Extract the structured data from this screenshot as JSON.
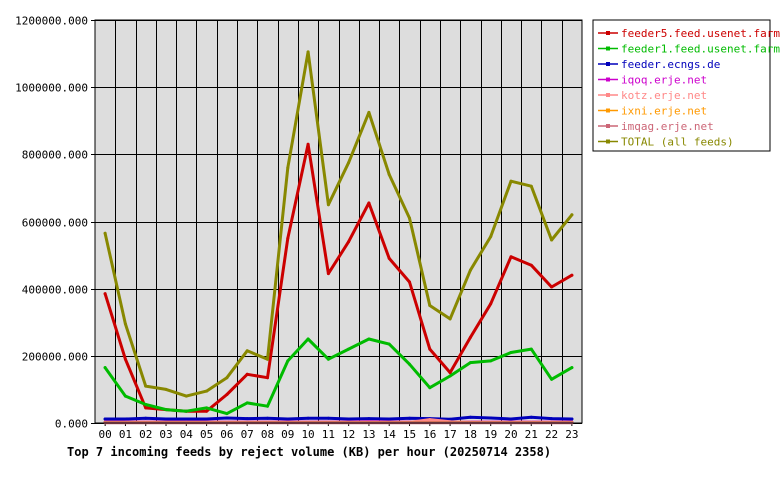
{
  "chart_data": {
    "type": "line",
    "title": "Top 7 incoming feeds by reject volume (KB) per hour (20250714 2358)",
    "xlabel": "",
    "ylabel": "",
    "categories": [
      "00",
      "01",
      "02",
      "03",
      "04",
      "05",
      "06",
      "07",
      "08",
      "09",
      "10",
      "11",
      "12",
      "13",
      "14",
      "15",
      "16",
      "17",
      "18",
      "19",
      "20",
      "21",
      "22",
      "23"
    ],
    "ylim": [
      0,
      1200000
    ],
    "yticks": [
      0,
      200000,
      400000,
      600000,
      800000,
      1000000,
      1200000
    ],
    "ytick_labels": [
      "0.000",
      "200000.000",
      "400000.000",
      "600000.000",
      "800000.000",
      "1000000.000",
      "1200000.000"
    ],
    "grid": true,
    "legend_position": "top-right",
    "series": [
      {
        "name": "feeder5.feed.usenet.farm",
        "color": "#cc0000",
        "values": [
          385000,
          190000,
          45000,
          40000,
          35000,
          35000,
          85000,
          145000,
          135000,
          550000,
          830000,
          445000,
          540000,
          655000,
          490000,
          420000,
          220000,
          150000,
          255000,
          355000,
          495000,
          470000,
          405000,
          440000
        ]
      },
      {
        "name": "feeder1.feed.usenet.farm",
        "color": "#00bb00",
        "values": [
          165000,
          80000,
          55000,
          40000,
          35000,
          45000,
          28000,
          60000,
          50000,
          185000,
          250000,
          190000,
          220000,
          250000,
          235000,
          175000,
          105000,
          140000,
          180000,
          185000,
          210000,
          220000,
          130000,
          165000
        ]
      },
      {
        "name": "feeder.ecngs.de",
        "color": "#0000bb",
        "values": [
          12000,
          12000,
          14000,
          12000,
          12000,
          12000,
          15000,
          13000,
          14000,
          12000,
          14000,
          14000,
          12000,
          13000,
          12000,
          14000,
          13000,
          11000,
          17000,
          15000,
          12000,
          17000,
          13000,
          12000
        ]
      },
      {
        "name": "iqoq.erje.net",
        "color": "#cc00cc",
        "values": [
          3000,
          3000,
          3000,
          3000,
          3000,
          3000,
          3000,
          3000,
          3000,
          3000,
          3000,
          3000,
          3000,
          4000,
          3000,
          3000,
          3000,
          3000,
          3000,
          3000,
          3000,
          3000,
          3000,
          3000
        ]
      },
      {
        "name": "kotz.erje.net",
        "color": "#ff8888",
        "values": [
          2000,
          2000,
          2000,
          2000,
          2000,
          2000,
          2000,
          2000,
          2000,
          2000,
          2000,
          2000,
          2000,
          2000,
          2000,
          2000,
          10000,
          4000,
          2000,
          2000,
          2000,
          2000,
          2000,
          2000
        ]
      },
      {
        "name": "ixni.erje.net",
        "color": "#ff9900",
        "values": [
          1500,
          1500,
          1500,
          1500,
          1500,
          1500,
          1500,
          1500,
          1500,
          1500,
          1500,
          1500,
          1500,
          1500,
          1500,
          1500,
          1500,
          1500,
          1500,
          1500,
          1500,
          1500,
          1500,
          1500
        ]
      },
      {
        "name": "imqag.erje.net",
        "color": "#cc6677",
        "values": [
          1000,
          1000,
          1000,
          1000,
          1000,
          1000,
          1000,
          1000,
          1000,
          1000,
          1000,
          1000,
          1000,
          1000,
          1000,
          1000,
          1000,
          1000,
          1000,
          1000,
          1000,
          1000,
          1000,
          1000
        ]
      },
      {
        "name": "TOTAL (all feeds)",
        "color": "#888800",
        "values": [
          565000,
          295000,
          110000,
          100000,
          80000,
          95000,
          135000,
          215000,
          190000,
          760000,
          1105000,
          650000,
          775000,
          925000,
          740000,
          610000,
          350000,
          310000,
          455000,
          555000,
          720000,
          705000,
          545000,
          620000
        ]
      }
    ]
  }
}
